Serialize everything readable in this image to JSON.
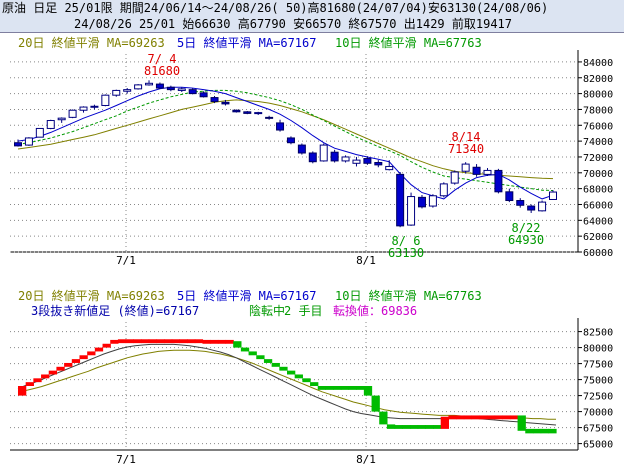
{
  "header": {
    "line1": "原油 日足 25/01限 期間24/06/14～24/08/26( 50)高81680(24/07/04)安63130(24/08/06)",
    "line2": "24/08/26 25/01 始66630 高67790 安66570 終67570 出1429 前取19417"
  },
  "colors": {
    "ma20": "#808000",
    "ma5": "#0000cc",
    "ma10": "#009900",
    "candle_up_border": "#000080",
    "candle_down": "#0000cc",
    "brick_up": "#ff0000",
    "brick_down": "#00bb00",
    "annot_high": "#dd0000",
    "annot_low": "#009900",
    "magenta": "#cc00cc"
  },
  "legend_top": {
    "ma20": "20日 終値平滑 MA=69263",
    "ma5": "5日 終値平滑 MA=67167",
    "ma10": "10日 終値平滑 MA=67763"
  },
  "legend_bottom": {
    "ma20": "20日 終値平滑 MA=69263",
    "ma5": "5日 終値平滑 MA=67167",
    "ma10": "10日 終値平滑 MA=67763",
    "kagi_prefix": "3段抜き新値足 (終値)=67167",
    "kagi_state": "陰転中",
    "kagi_step": "2 手目",
    "kagi_turn": "転換値：69836"
  },
  "chart_data": [
    {
      "type": "candlestick",
      "x_tick_labels": [
        "7/1",
        "8/1"
      ],
      "y_tick_labels": [
        "60000",
        "62000",
        "64000",
        "66000",
        "68000",
        "70000",
        "72000",
        "74000",
        "76000",
        "78000",
        "80000",
        "82000",
        "84000"
      ],
      "ylim": [
        60000,
        85000
      ],
      "annotations": [
        {
          "date": "7/ 4",
          "value": "81680"
        },
        {
          "date": "8/ 6",
          "value": "63130"
        },
        {
          "date": "8/14",
          "value": "71340"
        },
        {
          "date": "8/22",
          "value": "64930"
        }
      ],
      "candles": [
        [
          73800,
          74200,
          73300,
          73400
        ],
        [
          73500,
          74500,
          73400,
          74400
        ],
        [
          74500,
          75600,
          74500,
          75600
        ],
        [
          75600,
          76700,
          75500,
          76600
        ],
        [
          76700,
          77000,
          76300,
          76900
        ],
        [
          77000,
          78000,
          76900,
          77900
        ],
        [
          77900,
          78400,
          77600,
          78300
        ],
        [
          78300,
          78600,
          78000,
          78400
        ],
        [
          78500,
          79900,
          78400,
          79800
        ],
        [
          79800,
          80500,
          79600,
          80400
        ],
        [
          80300,
          80700,
          80000,
          80500
        ],
        [
          80600,
          81200,
          80500,
          81100
        ],
        [
          81100,
          81680,
          81000,
          81300
        ],
        [
          81200,
          81400,
          80600,
          80700
        ],
        [
          80800,
          81000,
          80300,
          80500
        ],
        [
          80400,
          80800,
          80200,
          80600
        ],
        [
          80500,
          80700,
          79900,
          80000
        ],
        [
          80100,
          80300,
          79500,
          79600
        ],
        [
          79500,
          79700,
          78800,
          79000
        ],
        [
          78900,
          79200,
          78500,
          78700
        ],
        [
          77900,
          78000,
          77600,
          77700
        ],
        [
          77700,
          77800,
          77400,
          77500
        ],
        [
          77500,
          77700,
          77300,
          77600
        ],
        [
          77000,
          77200,
          76700,
          76900
        ],
        [
          76300,
          76700,
          75200,
          75400
        ],
        [
          74400,
          74600,
          73600,
          73800
        ],
        [
          73500,
          73700,
          72300,
          72500
        ],
        [
          72500,
          72700,
          71200,
          71400
        ],
        [
          71500,
          73700,
          71400,
          73500
        ],
        [
          72600,
          72900,
          71300,
          71500
        ],
        [
          71500,
          72200,
          71300,
          72000
        ],
        [
          71200,
          72000,
          70800,
          71600
        ],
        [
          71800,
          72100,
          71000,
          71200
        ],
        [
          71300,
          71600,
          70700,
          71000
        ],
        [
          70400,
          71600,
          70300,
          70800
        ],
        [
          69800,
          70100,
          63130,
          63300
        ],
        [
          63400,
          67500,
          63300,
          67000
        ],
        [
          66900,
          67200,
          65500,
          65700
        ],
        [
          65800,
          67300,
          65600,
          67100
        ],
        [
          67100,
          68800,
          66900,
          68600
        ],
        [
          68700,
          70300,
          68500,
          70100
        ],
        [
          70200,
          71340,
          69900,
          71100
        ],
        [
          70700,
          71100,
          69500,
          69800
        ],
        [
          69800,
          70600,
          69600,
          70300
        ],
        [
          70300,
          70500,
          67400,
          67600
        ],
        [
          67600,
          68000,
          66300,
          66500
        ],
        [
          66500,
          66800,
          65600,
          65900
        ],
        [
          65800,
          66000,
          64930,
          65300
        ],
        [
          65200,
          66500,
          65100,
          66300
        ],
        [
          66630,
          67790,
          66570,
          67570
        ]
      ],
      "ma5": [
        74000,
        74200,
        74600,
        75100,
        75700,
        76300,
        76900,
        77400,
        77900,
        78500,
        79100,
        79700,
        80200,
        80600,
        80800,
        80800,
        80700,
        80500,
        80300,
        80000,
        79500,
        79000,
        78500,
        78000,
        77400,
        76600,
        75700,
        74700,
        73800,
        73100,
        72700,
        72300,
        72000,
        71700,
        71400,
        69900,
        68500,
        67500,
        67100,
        66700,
        67800,
        68700,
        69400,
        69700,
        69800,
        69100,
        68200,
        67400,
        66700,
        67167
      ],
      "ma10": [
        73600,
        73800,
        74100,
        74400,
        74800,
        75200,
        75700,
        76200,
        76700,
        77200,
        77800,
        78300,
        78800,
        79200,
        79600,
        79900,
        80200,
        80300,
        80400,
        80400,
        80300,
        80100,
        79800,
        79500,
        79100,
        78600,
        78000,
        77300,
        76600,
        75900,
        75200,
        74500,
        73900,
        73300,
        72800,
        72200,
        71400,
        70700,
        70100,
        69600,
        69400,
        69200,
        69000,
        68800,
        68600,
        68400,
        68200,
        68000,
        67800,
        67763
      ],
      "ma20": [
        73000,
        73200,
        73400,
        73600,
        73900,
        74200,
        74500,
        74800,
        75200,
        75600,
        76000,
        76400,
        76800,
        77200,
        77600,
        78000,
        78300,
        78600,
        78900,
        79100,
        79200,
        79100,
        79000,
        78800,
        78500,
        78100,
        77700,
        77200,
        76700,
        76100,
        75500,
        74900,
        74300,
        73700,
        73100,
        72500,
        71900,
        71400,
        70900,
        70500,
        70200,
        70000,
        69900,
        69800,
        69700,
        69600,
        69500,
        69400,
        69300,
        69263
      ]
    },
    {
      "type": "kagi",
      "x_tick_labels": [
        "7/1",
        "8/1"
      ],
      "y_tick_labels": [
        "65000",
        "67500",
        "70000",
        "72500",
        "75000",
        "77500",
        "80000",
        "82500"
      ],
      "ylim": [
        64000,
        84000
      ],
      "bricks": [
        [
          72500,
          74000,
          "up"
        ],
        [
          74000,
          74600,
          "up"
        ],
        [
          74600,
          75200,
          "up"
        ],
        [
          75200,
          75800,
          "up"
        ],
        [
          75800,
          76400,
          "up"
        ],
        [
          76400,
          77000,
          "up"
        ],
        [
          77000,
          77600,
          "up"
        ],
        [
          77600,
          78200,
          "up"
        ],
        [
          78200,
          78800,
          "up"
        ],
        [
          78800,
          79400,
          "up"
        ],
        [
          79400,
          80000,
          "up"
        ],
        [
          80000,
          80600,
          "up"
        ],
        [
          80600,
          81200,
          "up"
        ],
        [
          80700,
          81300,
          "up"
        ],
        [
          80700,
          81300,
          "up"
        ],
        [
          80700,
          81300,
          "up"
        ],
        [
          80700,
          81300,
          "up"
        ],
        [
          80700,
          81300,
          "up"
        ],
        [
          80700,
          81300,
          "up"
        ],
        [
          80700,
          81300,
          "up"
        ],
        [
          80700,
          81300,
          "up"
        ],
        [
          80700,
          81300,
          "up"
        ],
        [
          80700,
          81300,
          "up"
        ],
        [
          80700,
          81300,
          "up"
        ],
        [
          80600,
          81200,
          "up"
        ],
        [
          80600,
          81200,
          "up"
        ],
        [
          80600,
          81200,
          "up"
        ],
        [
          80600,
          81200,
          "up"
        ],
        [
          80000,
          81000,
          "down"
        ],
        [
          79400,
          80000,
          "down"
        ],
        [
          78800,
          79400,
          "down"
        ],
        [
          78200,
          78800,
          "down"
        ],
        [
          77600,
          78200,
          "down"
        ],
        [
          77000,
          77600,
          "down"
        ],
        [
          76400,
          77000,
          "down"
        ],
        [
          75800,
          76400,
          "down"
        ],
        [
          75200,
          75800,
          "down"
        ],
        [
          74600,
          75200,
          "down"
        ],
        [
          74000,
          74600,
          "down"
        ],
        [
          73400,
          74000,
          "down"
        ],
        [
          73400,
          74000,
          "down"
        ],
        [
          73400,
          74000,
          "down"
        ],
        [
          73400,
          74000,
          "down"
        ],
        [
          73400,
          74000,
          "down"
        ],
        [
          73400,
          74000,
          "down"
        ],
        [
          72500,
          74000,
          "down"
        ],
        [
          70000,
          72500,
          "down"
        ],
        [
          68000,
          70000,
          "down"
        ],
        [
          67300,
          68000,
          "down"
        ],
        [
          67300,
          67900,
          "down"
        ],
        [
          67300,
          67900,
          "down"
        ],
        [
          67300,
          67900,
          "down"
        ],
        [
          67300,
          67900,
          "down"
        ],
        [
          67300,
          67900,
          "down"
        ],
        [
          67300,
          67900,
          "down"
        ],
        [
          67300,
          69200,
          "up"
        ],
        [
          68800,
          69400,
          "up"
        ],
        [
          68800,
          69400,
          "up"
        ],
        [
          68800,
          69400,
          "up"
        ],
        [
          68800,
          69400,
          "up"
        ],
        [
          68800,
          69400,
          "up"
        ],
        [
          68800,
          69400,
          "up"
        ],
        [
          68800,
          69400,
          "up"
        ],
        [
          68800,
          69400,
          "up"
        ],
        [
          68800,
          69400,
          "up"
        ],
        [
          67000,
          69400,
          "down"
        ],
        [
          66600,
          67300,
          "down"
        ],
        [
          66600,
          67300,
          "down"
        ],
        [
          66600,
          67300,
          "down"
        ],
        [
          66600,
          67300,
          "down"
        ]
      ],
      "ma_a": [
        73600,
        74100,
        74500,
        75000,
        75500,
        76000,
        76500,
        77000,
        77500,
        78000,
        78500,
        79000,
        79400,
        79800,
        80100,
        80300,
        80400,
        80500,
        80500,
        80500,
        80500,
        80400,
        80300,
        80100,
        79900,
        79600,
        79300,
        78900,
        78400,
        77800,
        77200,
        76600,
        76000,
        75400,
        74800,
        74200,
        73600,
        73000,
        72400,
        71900,
        71400,
        70900,
        70400,
        70000,
        69700,
        69500,
        69300,
        69100,
        69000,
        68900,
        68900,
        68900,
        68900,
        68900,
        68900,
        68900,
        68900,
        68900,
        68900,
        68900,
        68800,
        68700,
        68600,
        68500,
        68400,
        68300,
        68200,
        68100,
        68000,
        67900
      ],
      "ma_b": [
        73000,
        73300,
        73600,
        73900,
        74300,
        74700,
        75100,
        75500,
        75900,
        76300,
        76800,
        77200,
        77600,
        78000,
        78400,
        78700,
        79000,
        79200,
        79400,
        79500,
        79600,
        79600,
        79600,
        79500,
        79400,
        79200,
        79000,
        78700,
        78400,
        78000,
        77600,
        77100,
        76600,
        76100,
        75600,
        75100,
        74600,
        74100,
        73600,
        73100,
        72700,
        72300,
        71900,
        71500,
        71200,
        70900,
        70600,
        70300,
        70100,
        69900,
        69800,
        69700,
        69600,
        69500,
        69400,
        69400,
        69400,
        69300,
        69300,
        69300,
        69200,
        69200,
        69100,
        69100,
        69000,
        69000,
        68900,
        68900,
        68800,
        68800
      ]
    }
  ]
}
